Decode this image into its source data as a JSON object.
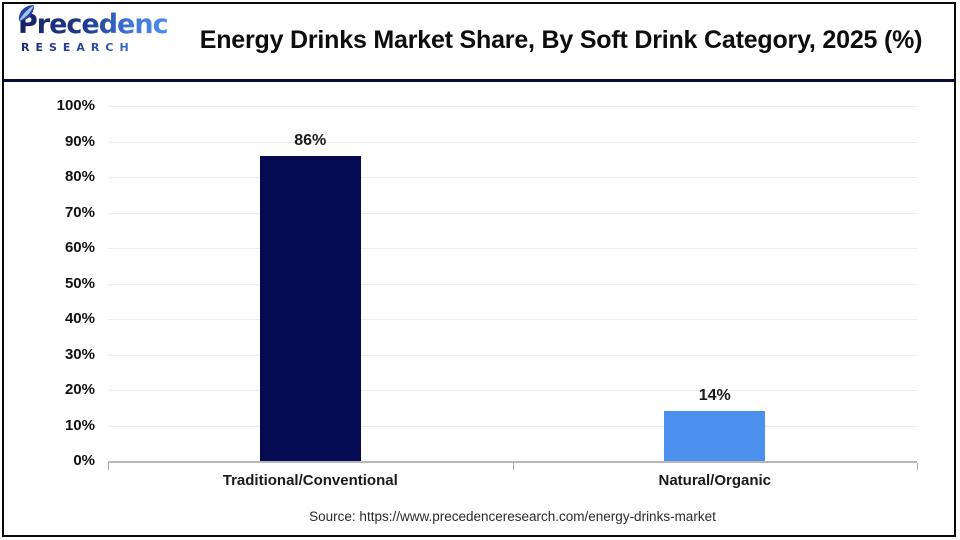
{
  "header": {
    "logo_brand": "Precedence",
    "logo_sub": "RESEARCH",
    "title": "Energy Drinks Market Share, By Soft Drink Category, 2025 (%)"
  },
  "chart_data": {
    "type": "bar",
    "title": "Energy Drinks Market Share, By Soft Drink Category, 2025 (%)",
    "categories": [
      "Traditional/Conventional",
      "Natural/Organic"
    ],
    "values": [
      86,
      14
    ],
    "value_labels": [
      "86%",
      "14%"
    ],
    "bar_colors": [
      "#050a52",
      "#4a90ec"
    ],
    "xlabel": "",
    "ylabel": "",
    "ylim": [
      0,
      100
    ],
    "ytick_step": 10,
    "ytick_labels": [
      "0%",
      "10%",
      "20%",
      "30%",
      "40%",
      "50%",
      "60%",
      "70%",
      "80%",
      "90%",
      "100%"
    ],
    "grid": true,
    "legend": "none"
  },
  "footer": {
    "source": "Source: https://www.precedenceresearch.com/energy-drinks-market"
  }
}
